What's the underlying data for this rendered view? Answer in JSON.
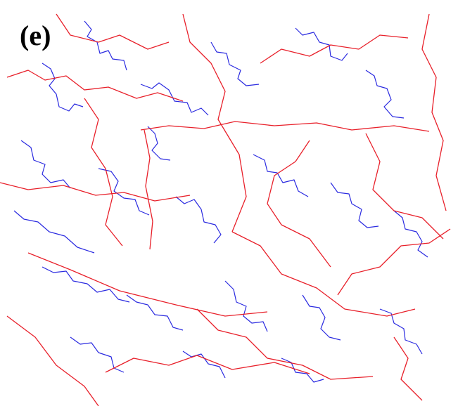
{
  "panel_label": "(e)"
}
